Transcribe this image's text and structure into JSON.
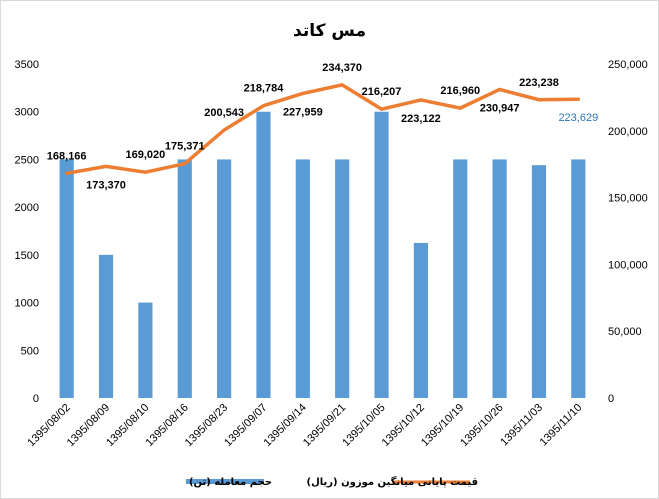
{
  "chart_data": {
    "type": "bar",
    "title": "مس کاتد",
    "categories": [
      "1395/08/02",
      "1395/08/09",
      "1395/08/10",
      "1395/08/16",
      "1395/08/23",
      "1395/09/07",
      "1395/09/14",
      "1395/09/21",
      "1395/10/05",
      "1395/10/12",
      "1395/10/19",
      "1395/10/26",
      "1395/11/03",
      "1395/11/10"
    ],
    "left_axis": {
      "ylim": [
        0,
        3500
      ],
      "ticks": [
        0,
        500,
        1000,
        1500,
        2000,
        2500,
        3000,
        3500
      ]
    },
    "right_axis": {
      "ylim": [
        0,
        250000
      ],
      "ticks": [
        "0",
        "50,000",
        "100,000",
        "150,000",
        "200,000",
        "250,000"
      ],
      "tick_values": [
        0,
        50000,
        100000,
        150000,
        200000,
        250000
      ]
    },
    "series": [
      {
        "name": "حجم معامله (تن)",
        "type": "bar",
        "axis": "left",
        "color": "#5B9BD5",
        "values": [
          2500,
          1500,
          1000,
          2500,
          2500,
          3000,
          2500,
          2500,
          3000,
          1625,
          2500,
          2500,
          2440,
          2500
        ]
      },
      {
        "name": "قیمت پایانی میانگین موزون (ریال)",
        "type": "line",
        "axis": "right",
        "color": "#ED7D31",
        "values": [
          168166,
          173370,
          169020,
          175371,
          200543,
          218784,
          227959,
          234370,
          216207,
          223122,
          216960,
          230947,
          223238,
          223629
        ],
        "labels": [
          "168,166",
          "173,370",
          "169,020",
          "175,371",
          "200,543",
          "218,784",
          "227,959",
          "234,370",
          "216,207",
          "223,122",
          "216,960",
          "230,947",
          "223,238",
          "223,629"
        ]
      }
    ],
    "grid": false,
    "legend": "bottom"
  }
}
